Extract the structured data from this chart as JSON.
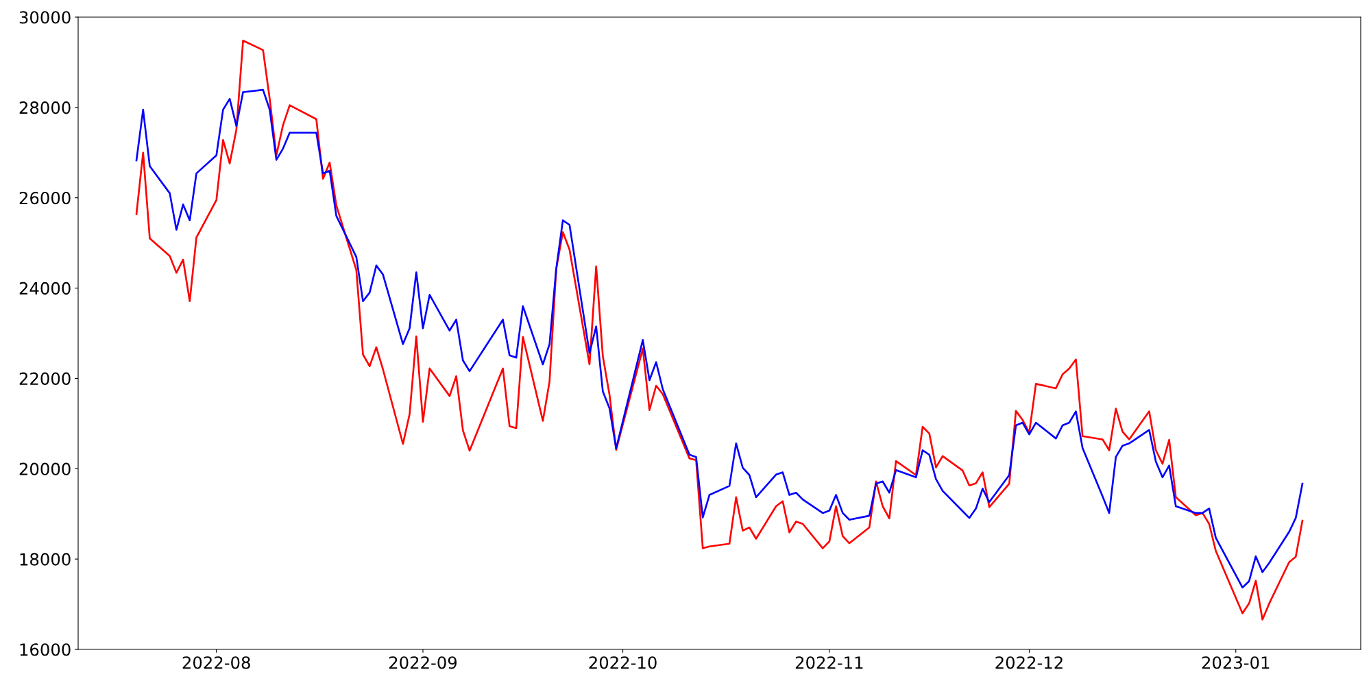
{
  "chart_data": {
    "type": "line",
    "x": [
      "2022-07-20",
      "2022-07-21",
      "2022-07-22",
      "2022-07-25",
      "2022-07-26",
      "2022-07-27",
      "2022-07-28",
      "2022-07-29",
      "2022-08-01",
      "2022-08-02",
      "2022-08-03",
      "2022-08-04",
      "2022-08-05",
      "2022-08-08",
      "2022-08-09",
      "2022-08-10",
      "2022-08-11",
      "2022-08-12",
      "2022-08-16",
      "2022-08-17",
      "2022-08-18",
      "2022-08-19",
      "2022-08-22",
      "2022-08-23",
      "2022-08-24",
      "2022-08-25",
      "2022-08-26",
      "2022-08-29",
      "2022-08-30",
      "2022-08-31",
      "2022-09-01",
      "2022-09-02",
      "2022-09-05",
      "2022-09-06",
      "2022-09-07",
      "2022-09-08",
      "2022-09-13",
      "2022-09-14",
      "2022-09-15",
      "2022-09-16",
      "2022-09-19",
      "2022-09-20",
      "2022-09-21",
      "2022-09-22",
      "2022-09-23",
      "2022-09-26",
      "2022-09-27",
      "2022-09-28",
      "2022-09-29",
      "2022-09-30",
      "2022-10-04",
      "2022-10-05",
      "2022-10-06",
      "2022-10-07",
      "2022-10-11",
      "2022-10-12",
      "2022-10-13",
      "2022-10-14",
      "2022-10-17",
      "2022-10-18",
      "2022-10-19",
      "2022-10-20",
      "2022-10-21",
      "2022-10-24",
      "2022-10-25",
      "2022-10-26",
      "2022-10-27",
      "2022-10-28",
      "2022-10-31",
      "2022-11-01",
      "2022-11-02",
      "2022-11-03",
      "2022-11-04",
      "2022-11-07",
      "2022-11-08",
      "2022-11-09",
      "2022-11-10",
      "2022-11-11",
      "2022-11-14",
      "2022-11-15",
      "2022-11-16",
      "2022-11-17",
      "2022-11-18",
      "2022-11-21",
      "2022-11-22",
      "2022-11-23",
      "2022-11-24",
      "2022-11-25",
      "2022-11-28",
      "2022-11-29",
      "2022-11-30",
      "2022-12-01",
      "2022-12-02",
      "2022-12-05",
      "2022-12-06",
      "2022-12-07",
      "2022-12-08",
      "2022-12-09",
      "2022-12-12",
      "2022-12-13",
      "2022-12-14",
      "2022-12-15",
      "2022-12-16",
      "2022-12-19",
      "2022-12-20",
      "2022-12-21",
      "2022-12-22",
      "2022-12-23",
      "2022-12-26",
      "2022-12-27",
      "2022-12-28",
      "2022-12-29",
      "2023-01-02",
      "2023-01-03",
      "2023-01-04",
      "2023-01-05",
      "2023-01-06",
      "2023-01-09",
      "2023-01-10",
      "2023-01-11"
    ],
    "series": [
      {
        "color": "#ff0000",
        "values": [
          25640,
          27000,
          25100,
          24710,
          24340,
          24630,
          23710,
          25120,
          25950,
          27280,
          26760,
          27510,
          29480,
          29270,
          28190,
          26940,
          27610,
          28050,
          27740,
          26420,
          26780,
          25830,
          24400,
          22530,
          22270,
          22690,
          22200,
          20550,
          21210,
          22930,
          21040,
          22220,
          21610,
          22050,
          20850,
          20400,
          22220,
          20940,
          20900,
          22920,
          21060,
          21930,
          24420,
          25240,
          24850,
          22310,
          24480,
          22490,
          21640,
          20420,
          22660,
          21300,
          21840,
          21650,
          20230,
          20190,
          18240,
          18280,
          18340,
          19370,
          18630,
          18700,
          18450,
          19170,
          19280,
          18590,
          18830,
          18780,
          18240,
          18390,
          19170,
          18510,
          18350,
          18700,
          19720,
          19170,
          18900,
          20170,
          19860,
          20930,
          20780,
          20030,
          20280,
          19960,
          19630,
          19680,
          19920,
          19150,
          19670,
          21280,
          21080,
          20800,
          21880,
          21780,
          22090,
          22220,
          22420,
          20720,
          20650,
          20410,
          21330,
          20820,
          20650,
          21270,
          20410,
          20110,
          20640,
          19370,
          18970,
          19020,
          18780,
          18180,
          16800,
          17020,
          17520,
          16660,
          17010,
          17930,
          18050,
          18850
        ]
      },
      {
        "color": "#0000ff",
        "values": [
          26830,
          27950,
          26700,
          26100,
          25290,
          25850,
          25500,
          26540,
          26940,
          27950,
          28190,
          27590,
          28340,
          28390,
          27950,
          26840,
          27090,
          27440,
          27440,
          26540,
          26600,
          25600,
          24690,
          23710,
          23900,
          24500,
          24300,
          22760,
          23110,
          24350,
          23110,
          23850,
          23060,
          23300,
          22400,
          22160,
          23300,
          22510,
          22460,
          23600,
          22310,
          22760,
          24420,
          25500,
          25400,
          22560,
          23150,
          21710,
          21340,
          20450,
          22850,
          21960,
          22360,
          21760,
          20310,
          20260,
          18920,
          19420,
          19620,
          20560,
          20020,
          19860,
          19370,
          19870,
          19920,
          19420,
          19470,
          19320,
          19020,
          19070,
          19420,
          19020,
          18870,
          18960,
          19670,
          19720,
          19470,
          19970,
          19810,
          20410,
          20310,
          19770,
          19510,
          19060,
          18910,
          19120,
          19560,
          19260,
          19860,
          20960,
          21020,
          20760,
          21020,
          20670,
          20960,
          21020,
          21270,
          20460,
          19390,
          19020,
          20260,
          20510,
          20560,
          20860,
          20160,
          19810,
          20070,
          19170,
          19020,
          19020,
          19120,
          18470,
          17370,
          17510,
          18060,
          17710,
          17910,
          18600,
          18910,
          19670
        ]
      }
    ],
    "xlim": [
      "2022-07-11T06:00",
      "2023-01-19T18:00"
    ],
    "xticks": [
      {
        "value": "2022-08-01",
        "label": "2022-08"
      },
      {
        "value": "2022-09-01",
        "label": "2022-09"
      },
      {
        "value": "2022-10-01",
        "label": "2022-10"
      },
      {
        "value": "2022-11-01",
        "label": "2022-11"
      },
      {
        "value": "2022-12-01",
        "label": "2022-12"
      },
      {
        "value": "2023-01-01",
        "label": "2023-01"
      }
    ],
    "ylim": [
      16000,
      30000
    ],
    "yticks": [
      16000,
      18000,
      20000,
      22000,
      24000,
      26000,
      28000,
      30000
    ]
  }
}
